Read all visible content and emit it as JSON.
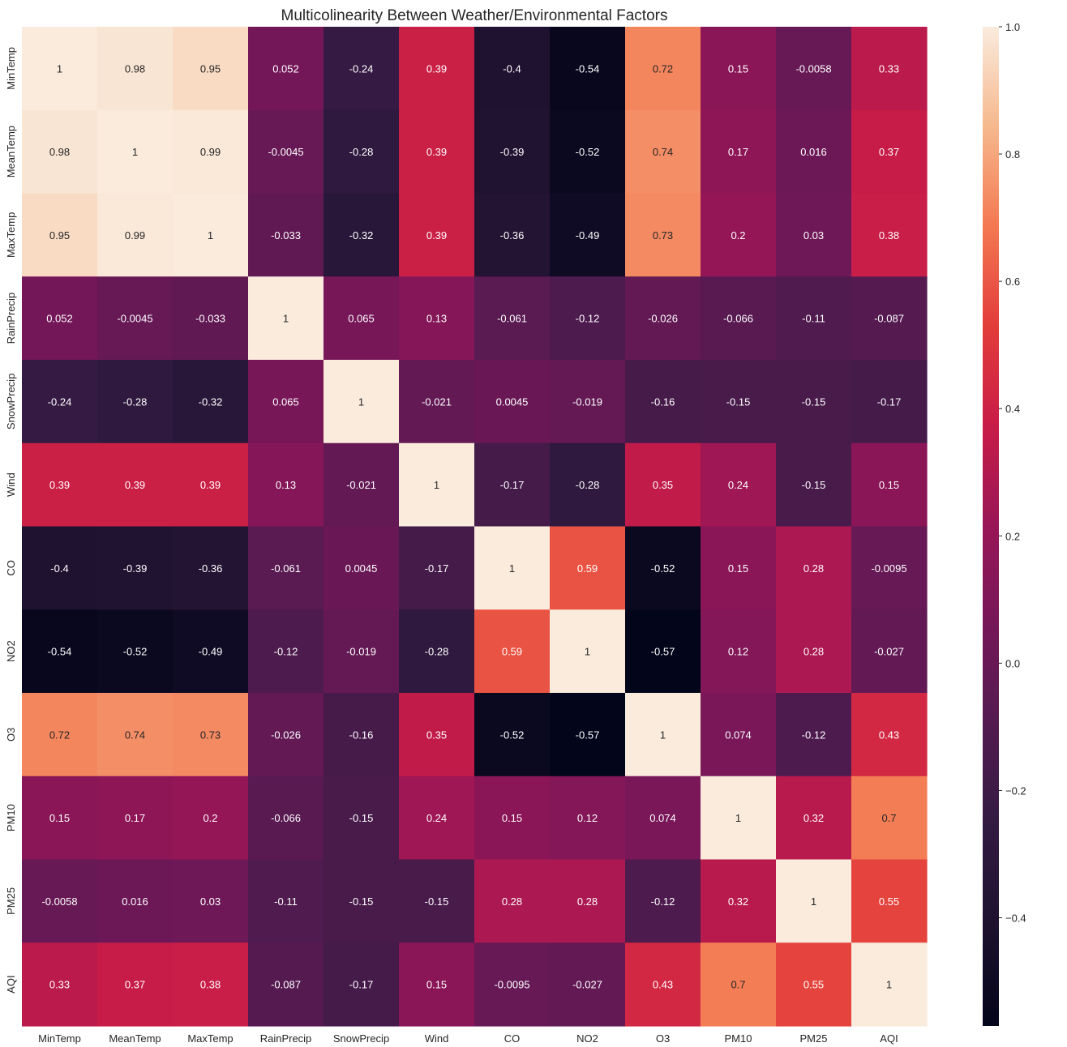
{
  "chart_data": {
    "type": "heatmap",
    "title": "Multicolinearity Between Weather/Environmental Factors",
    "xlabel": "",
    "ylabel": "",
    "colormap": "rocket",
    "vmin": -0.57,
    "vmax": 1.0,
    "labels": [
      "MinTemp",
      "MeanTemp",
      "MaxTemp",
      "RainPrecip",
      "SnowPrecip",
      "Wind",
      "CO",
      "NO2",
      "O3",
      "PM10",
      "PM25",
      "AQI"
    ],
    "matrix": [
      [
        1,
        0.98,
        0.95,
        0.052,
        -0.24,
        0.39,
        -0.4,
        -0.54,
        0.72,
        0.15,
        -0.0058,
        0.33
      ],
      [
        0.98,
        1,
        0.99,
        -0.0045,
        -0.28,
        0.39,
        -0.39,
        -0.52,
        0.74,
        0.17,
        0.016,
        0.37
      ],
      [
        0.95,
        0.99,
        1,
        -0.033,
        -0.32,
        0.39,
        -0.36,
        -0.49,
        0.73,
        0.2,
        0.03,
        0.38
      ],
      [
        0.052,
        -0.0045,
        -0.033,
        1,
        0.065,
        0.13,
        -0.061,
        -0.12,
        -0.026,
        -0.066,
        -0.11,
        -0.087
      ],
      [
        -0.24,
        -0.28,
        -0.32,
        0.065,
        1,
        -0.021,
        0.0045,
        -0.019,
        -0.16,
        -0.15,
        -0.15,
        -0.17
      ],
      [
        0.39,
        0.39,
        0.39,
        0.13,
        -0.021,
        1,
        -0.17,
        -0.28,
        0.35,
        0.24,
        -0.15,
        0.15
      ],
      [
        -0.4,
        -0.39,
        -0.36,
        -0.061,
        0.0045,
        -0.17,
        1,
        0.59,
        -0.52,
        0.15,
        0.28,
        -0.0095
      ],
      [
        -0.54,
        -0.52,
        -0.49,
        -0.12,
        -0.019,
        -0.28,
        0.59,
        1,
        -0.57,
        0.12,
        0.28,
        -0.027
      ],
      [
        0.72,
        0.74,
        0.73,
        -0.026,
        -0.16,
        0.35,
        -0.52,
        -0.57,
        1,
        0.074,
        -0.12,
        0.43
      ],
      [
        0.15,
        0.17,
        0.2,
        -0.066,
        -0.15,
        0.24,
        0.15,
        0.12,
        0.074,
        1,
        0.32,
        0.7
      ],
      [
        -0.0058,
        0.016,
        0.03,
        -0.11,
        -0.15,
        -0.15,
        0.28,
        0.28,
        -0.12,
        0.32,
        1,
        0.55
      ],
      [
        0.33,
        0.37,
        0.38,
        -0.087,
        -0.17,
        0.15,
        -0.0095,
        -0.027,
        0.43,
        0.7,
        0.55,
        1
      ]
    ],
    "colorbar_ticks": [
      -0.4,
      -0.2,
      0.0,
      0.2,
      0.4,
      0.6,
      0.8,
      1.0
    ],
    "colorbar_tick_labels": [
      "−0.4",
      "−0.2",
      "0.0",
      "0.2",
      "0.4",
      "0.6",
      "0.8",
      "1.0"
    ]
  }
}
